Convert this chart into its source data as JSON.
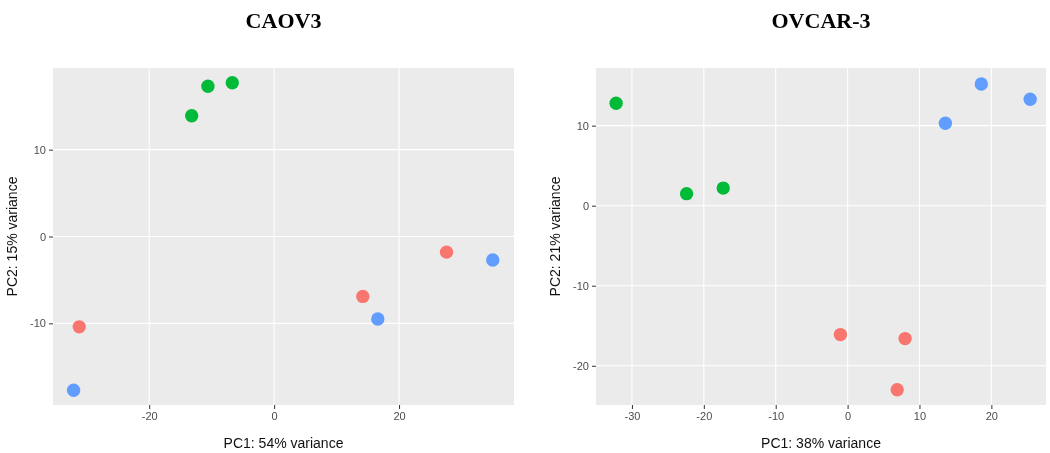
{
  "chart_data": [
    {
      "type": "scatter",
      "title": "CAOV3",
      "xlabel": "PC1: 54% variance",
      "ylabel": "PC2: 15% variance",
      "xlim": [
        -35.4,
        38.4
      ],
      "ylim": [
        -19.4,
        19.4
      ],
      "xticks": [
        -20,
        0,
        20
      ],
      "yticks": [
        -10,
        0,
        10
      ],
      "grid": true,
      "marker": "circle",
      "series": [
        {
          "color": "#f8766d",
          "x": [
            -31.2,
            14.2,
            27.6
          ],
          "values": [
            -10.4,
            -6.9,
            -1.8
          ]
        },
        {
          "color": "#00ba38",
          "x": [
            -13.2,
            -10.6,
            -6.7
          ],
          "values": [
            13.9,
            17.3,
            17.7
          ]
        },
        {
          "color": "#619cff",
          "x": [
            -32.1,
            16.6,
            35.0
          ],
          "values": [
            -17.7,
            -9.5,
            -2.7
          ]
        }
      ]
    },
    {
      "type": "scatter",
      "title": "OVCAR-3",
      "xlabel": "PC1: 38% variance",
      "ylabel": "PC2: 21% variance",
      "xlim": [
        -35.0,
        27.6
      ],
      "ylim": [
        -24.9,
        17.2
      ],
      "xticks": [
        -30,
        -20,
        -10,
        0,
        10,
        20
      ],
      "yticks": [
        -20,
        -10,
        0,
        10
      ],
      "grid": true,
      "marker": "circle",
      "series": [
        {
          "color": "#f8766d",
          "x": [
            -1.0,
            8.0,
            6.9
          ],
          "values": [
            -16.1,
            -16.6,
            -23.0
          ]
        },
        {
          "color": "#00ba38",
          "x": [
            -32.2,
            -22.4,
            -17.3
          ],
          "values": [
            12.8,
            1.5,
            2.2
          ]
        },
        {
          "color": "#619cff",
          "x": [
            13.6,
            18.6,
            25.4
          ],
          "values": [
            10.3,
            15.2,
            13.3
          ]
        }
      ]
    }
  ]
}
